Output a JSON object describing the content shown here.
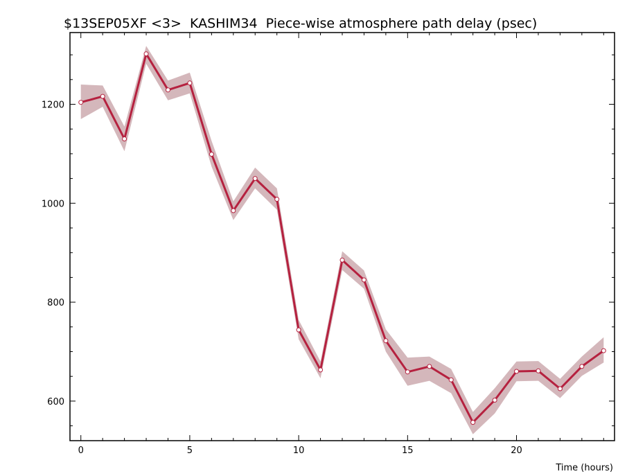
{
  "chart_data": {
    "type": "line",
    "title": "$13SEP05XF <3>  KASHIM34  Piece-wise atmosphere path delay (psec)",
    "xlabel": "Time (hours)",
    "ylabel": "",
    "xlim": [
      -0.5,
      24.5
    ],
    "ylim": [
      520,
      1345
    ],
    "xticks": [
      0,
      5,
      10,
      15,
      20
    ],
    "xtick_labels": [
      "0",
      "5",
      "10",
      "15",
      "20"
    ],
    "yticks": [
      600,
      800,
      1000,
      1200
    ],
    "ytick_labels": [
      "600",
      "800",
      "1000",
      "1200"
    ],
    "grid": false,
    "legend": "none",
    "colors": {
      "line": "#b5213f",
      "band": "#d4b7bb",
      "marker_fill": "#ffffff"
    },
    "x": [
      0,
      1,
      2,
      3,
      4,
      5,
      6,
      7,
      8,
      9,
      10,
      11,
      12,
      13,
      14,
      15,
      16,
      17,
      18,
      19,
      20,
      21,
      22,
      23,
      24
    ],
    "series": [
      {
        "values": [
          1204,
          1216,
          1130,
          1302,
          1229,
          1243,
          1099,
          985,
          1050,
          1008,
          744,
          663,
          885,
          845,
          722,
          659,
          670,
          643,
          557,
          602,
          660,
          661,
          625,
          670,
          702
        ],
        "lower": [
          1170,
          1195,
          1105,
          1282,
          1208,
          1222,
          1074,
          966,
          1030,
          987,
          725,
          646,
          865,
          827,
          700,
          631,
          641,
          616,
          533,
          575,
          640,
          641,
          606,
          651,
          678
        ],
        "upper": [
          1240,
          1238,
          1155,
          1318,
          1248,
          1264,
          1126,
          1004,
          1072,
          1030,
          764,
          680,
          903,
          864,
          745,
          688,
          690,
          665,
          578,
          626,
          680,
          681,
          645,
          690,
          729
        ]
      }
    ]
  }
}
